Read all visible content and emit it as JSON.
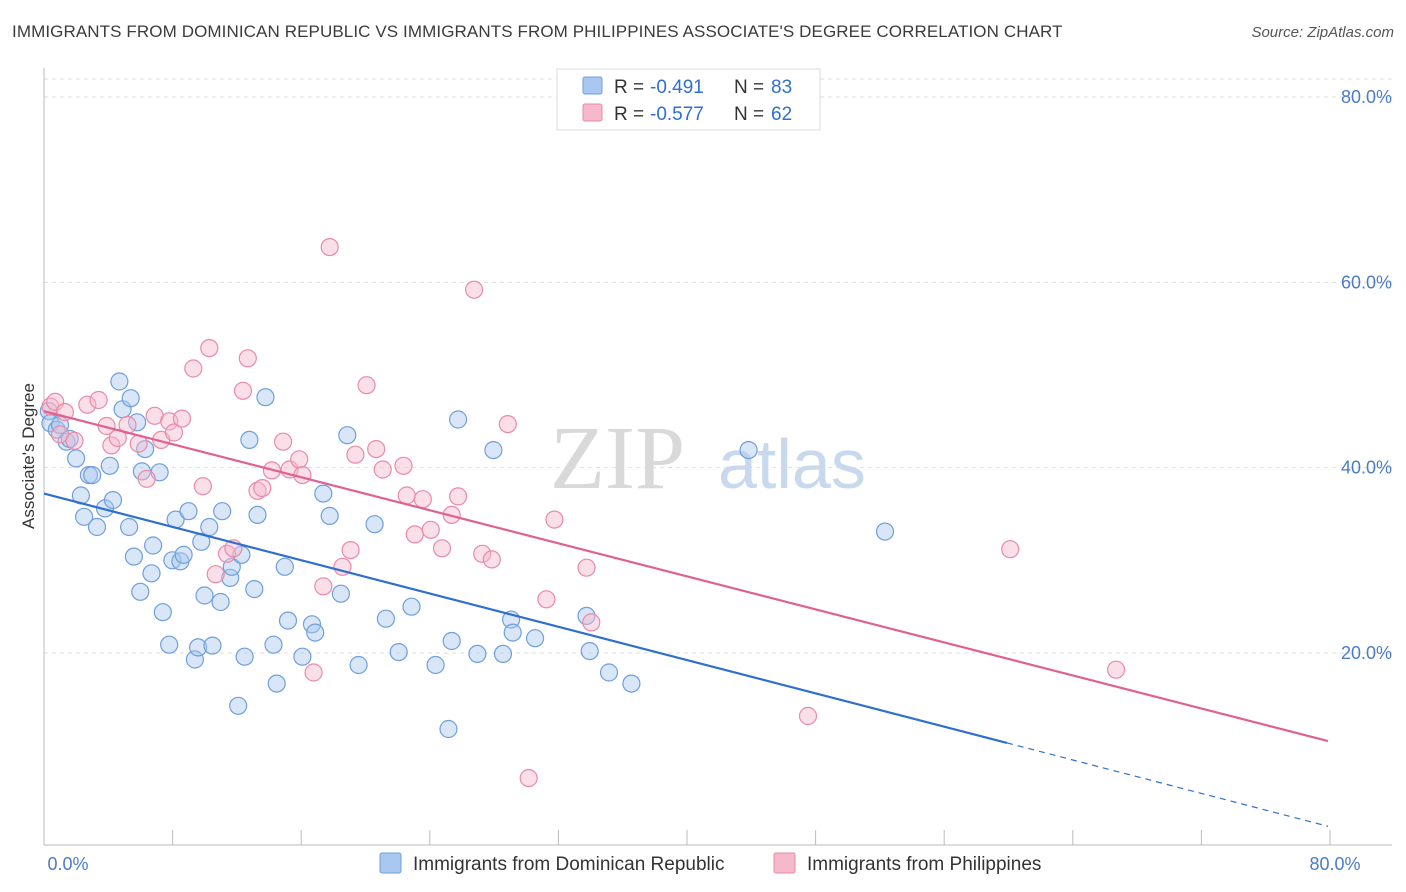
{
  "header": {
    "title": "IMMIGRANTS FROM DOMINICAN REPUBLIC VS IMMIGRANTS FROM PHILIPPINES ASSOCIATE'S DEGREE CORRELATION CHART",
    "source": "Source: ZipAtlas.com"
  },
  "watermark": {
    "zip": "ZIP",
    "atlas": "atlas"
  },
  "legend": {
    "row1": {
      "r_label": "R =",
      "r_value": "-0.491",
      "n_label": "N =",
      "n_value": "83"
    },
    "row2": {
      "r_label": "R =",
      "r_value": "-0.577",
      "n_label": "N =",
      "n_value": "62"
    }
  },
  "colors": {
    "blue_fill": "#a9c7f0",
    "blue_stroke": "#6f9fdc",
    "blue_line": "#2f6fcf",
    "pink_fill": "#f6b8cb",
    "pink_stroke": "#e98aa8",
    "pink_line": "#e0608f",
    "value_text": "#2f6fcf",
    "grid": "#dddddd"
  },
  "chart_data": {
    "type": "scatter",
    "x_tick_labels": [
      "0.0%",
      "80.0%"
    ],
    "y_tick_labels": [
      "20.0%",
      "40.0%",
      "60.0%",
      "80.0%"
    ],
    "y_ticks": [
      20,
      40,
      60,
      80
    ],
    "xlim": [
      0,
      80
    ],
    "ylim": [
      0,
      83
    ],
    "ylabel": "Associate's Degree",
    "xlabel": "",
    "grid": true,
    "legend_position": "top-center",
    "series": [
      {
        "name": "Immigrants from Dominican Republic",
        "color": "blue",
        "r": -0.491,
        "n": 83,
        "trend": {
          "x0": 0,
          "y0": 37.2,
          "x1": 60,
          "y1": 10.3,
          "dashed_to_x": 80,
          "dashed_to_y": 1.3
        },
        "points": [
          [
            0.3,
            46.1
          ],
          [
            0.4,
            44.8
          ],
          [
            0.8,
            44.1
          ],
          [
            1.4,
            42.8
          ],
          [
            1.6,
            43.1
          ],
          [
            2.0,
            41.0
          ],
          [
            2.3,
            37.0
          ],
          [
            2.5,
            34.7
          ],
          [
            2.8,
            39.2
          ],
          [
            3.0,
            39.2
          ],
          [
            3.3,
            33.6
          ],
          [
            3.8,
            35.6
          ],
          [
            4.1,
            40.2
          ],
          [
            4.3,
            36.5
          ],
          [
            4.7,
            49.3
          ],
          [
            4.9,
            46.3
          ],
          [
            5.3,
            33.6
          ],
          [
            5.4,
            47.5
          ],
          [
            5.6,
            30.4
          ],
          [
            5.8,
            44.9
          ],
          [
            6.1,
            39.6
          ],
          [
            6.3,
            42.0
          ],
          [
            6.8,
            31.6
          ],
          [
            6.7,
            28.6
          ],
          [
            7.2,
            39.5
          ],
          [
            7.4,
            24.4
          ],
          [
            7.8,
            20.9
          ],
          [
            8.0,
            30.0
          ],
          [
            8.2,
            34.4
          ],
          [
            8.5,
            29.9
          ],
          [
            8.7,
            30.6
          ],
          [
            9.0,
            35.3
          ],
          [
            9.4,
            19.3
          ],
          [
            9.6,
            20.6
          ],
          [
            9.8,
            32.0
          ],
          [
            10.0,
            26.2
          ],
          [
            10.3,
            33.6
          ],
          [
            10.5,
            20.8
          ],
          [
            11.0,
            25.5
          ],
          [
            11.1,
            35.3
          ],
          [
            11.6,
            28.1
          ],
          [
            11.7,
            29.3
          ],
          [
            12.1,
            14.3
          ],
          [
            12.3,
            30.6
          ],
          [
            12.5,
            19.6
          ],
          [
            12.8,
            43.0
          ],
          [
            13.1,
            26.9
          ],
          [
            13.3,
            34.9
          ],
          [
            13.8,
            47.6
          ],
          [
            14.3,
            20.9
          ],
          [
            14.5,
            16.7
          ],
          [
            15.0,
            29.3
          ],
          [
            15.2,
            23.5
          ],
          [
            16.1,
            19.6
          ],
          [
            16.7,
            23.1
          ],
          [
            16.9,
            22.2
          ],
          [
            17.4,
            37.2
          ],
          [
            17.8,
            34.8
          ],
          [
            18.5,
            26.4
          ],
          [
            18.9,
            43.5
          ],
          [
            19.6,
            18.7
          ],
          [
            20.6,
            33.9
          ],
          [
            21.3,
            23.7
          ],
          [
            22.1,
            20.1
          ],
          [
            22.9,
            25.0
          ],
          [
            24.4,
            18.7
          ],
          [
            25.2,
            11.8
          ],
          [
            25.4,
            21.3
          ],
          [
            25.8,
            45.2
          ],
          [
            27.0,
            19.9
          ],
          [
            28.0,
            41.9
          ],
          [
            28.6,
            19.9
          ],
          [
            29.1,
            23.6
          ],
          [
            29.2,
            22.2
          ],
          [
            30.6,
            21.6
          ],
          [
            33.8,
            24.0
          ],
          [
            34.0,
            20.2
          ],
          [
            35.2,
            17.9
          ],
          [
            36.6,
            16.7
          ],
          [
            43.9,
            41.9
          ],
          [
            52.4,
            33.1
          ],
          [
            6.0,
            26.6
          ],
          [
            1.0,
            44.6
          ]
        ]
      },
      {
        "name": "Immigrants from Philippines",
        "color": "pink",
        "r": -0.577,
        "n": 62,
        "trend": {
          "x0": 0,
          "y0": 46.1,
          "x1": 80,
          "y1": 10.5
        },
        "points": [
          [
            0.4,
            46.6
          ],
          [
            0.7,
            47.1
          ],
          [
            1.0,
            43.6
          ],
          [
            1.3,
            46.0
          ],
          [
            1.9,
            42.9
          ],
          [
            2.7,
            46.8
          ],
          [
            3.4,
            47.3
          ],
          [
            3.9,
            44.5
          ],
          [
            4.2,
            42.4
          ],
          [
            4.6,
            43.2
          ],
          [
            5.2,
            44.6
          ],
          [
            5.9,
            42.6
          ],
          [
            6.4,
            38.8
          ],
          [
            6.9,
            45.6
          ],
          [
            7.3,
            43.0
          ],
          [
            7.8,
            45.0
          ],
          [
            8.1,
            43.8
          ],
          [
            8.6,
            45.3
          ],
          [
            9.3,
            50.7
          ],
          [
            9.9,
            38.0
          ],
          [
            10.3,
            52.9
          ],
          [
            10.7,
            28.5
          ],
          [
            11.4,
            30.7
          ],
          [
            11.8,
            31.3
          ],
          [
            12.4,
            48.3
          ],
          [
            12.7,
            51.8
          ],
          [
            13.3,
            37.5
          ],
          [
            13.6,
            37.8
          ],
          [
            14.2,
            39.7
          ],
          [
            14.9,
            42.8
          ],
          [
            15.3,
            39.8
          ],
          [
            15.9,
            40.9
          ],
          [
            16.1,
            39.2
          ],
          [
            16.8,
            17.9
          ],
          [
            17.4,
            27.2
          ],
          [
            17.8,
            63.8
          ],
          [
            18.6,
            29.3
          ],
          [
            19.1,
            31.1
          ],
          [
            19.4,
            41.4
          ],
          [
            20.1,
            48.9
          ],
          [
            20.7,
            42.0
          ],
          [
            21.1,
            39.8
          ],
          [
            22.4,
            40.2
          ],
          [
            22.6,
            37.0
          ],
          [
            23.1,
            32.8
          ],
          [
            23.6,
            36.6
          ],
          [
            24.1,
            33.3
          ],
          [
            24.8,
            31.3
          ],
          [
            25.4,
            34.9
          ],
          [
            25.8,
            36.9
          ],
          [
            26.8,
            59.2
          ],
          [
            27.3,
            30.7
          ],
          [
            27.9,
            30.1
          ],
          [
            28.9,
            44.7
          ],
          [
            30.2,
            6.5
          ],
          [
            31.3,
            25.8
          ],
          [
            31.8,
            34.4
          ],
          [
            33.8,
            29.2
          ],
          [
            34.1,
            23.3
          ],
          [
            47.6,
            13.2
          ],
          [
            60.2,
            31.2
          ],
          [
            66.8,
            18.2
          ]
        ]
      }
    ]
  },
  "bottom_legend": {
    "item1": "Immigrants from Dominican Republic",
    "item2": "Immigrants from Philippines"
  }
}
